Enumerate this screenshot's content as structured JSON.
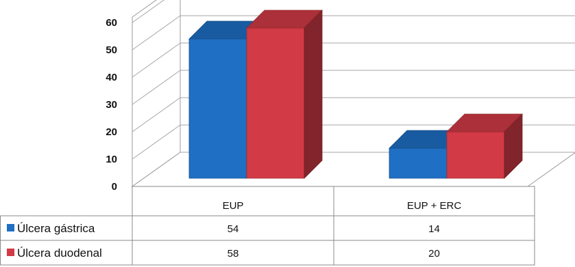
{
  "chart_data": {
    "type": "bar",
    "categories": [
      "EUP",
      "EUP + ERC"
    ],
    "series": [
      {
        "name": "Úlcera gástrica",
        "values": [
          54,
          14
        ],
        "color": "#1f6fc4"
      },
      {
        "name": "Úlcera duodenal",
        "values": [
          58,
          20
        ],
        "color": "#d23a45"
      }
    ],
    "ylim": [
      0,
      60
    ],
    "yticks": [
      0,
      10,
      20,
      30,
      40,
      50,
      60
    ],
    "data_table": true,
    "three_d": true,
    "grid": true
  }
}
